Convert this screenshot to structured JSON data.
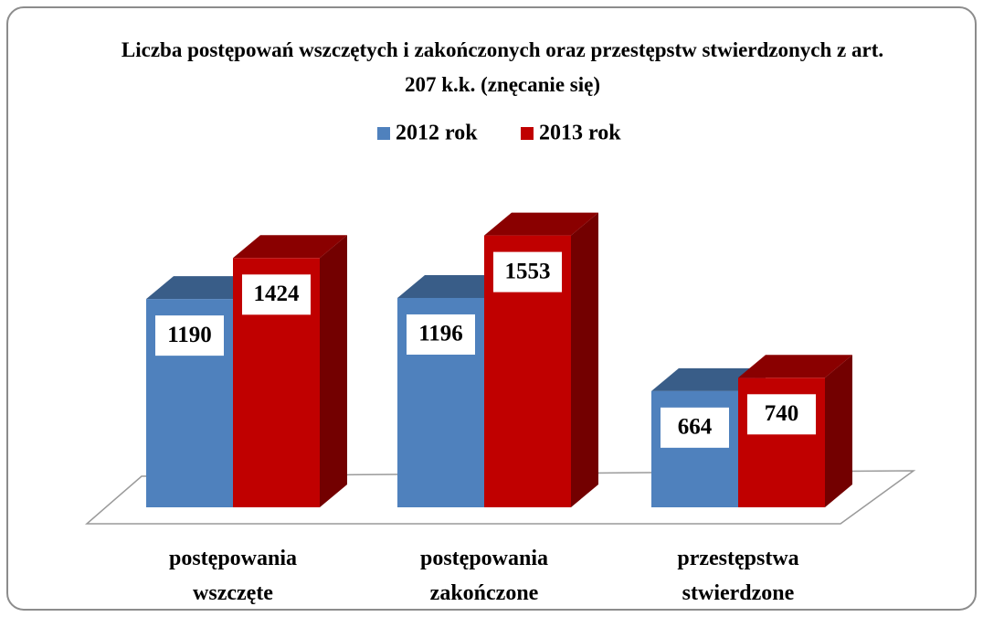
{
  "chart_data": {
    "type": "bar3d",
    "title": "Liczba postępowań wszczętych i zakończonych oraz przestępstw stwierdzonych z art. 207 k.k. (znęcanie się)",
    "categories": [
      "postępowania wszczęte",
      "postępowania zakończone",
      "przestępstwa stwierdzone"
    ],
    "series": [
      {
        "name": "2012 rok",
        "color": "#4f81bd",
        "values": [
          1190,
          1196,
          664
        ]
      },
      {
        "name": "2013 rok",
        "color": "#c00000",
        "values": [
          1424,
          1553,
          740
        ]
      }
    ],
    "legend": "top"
  }
}
